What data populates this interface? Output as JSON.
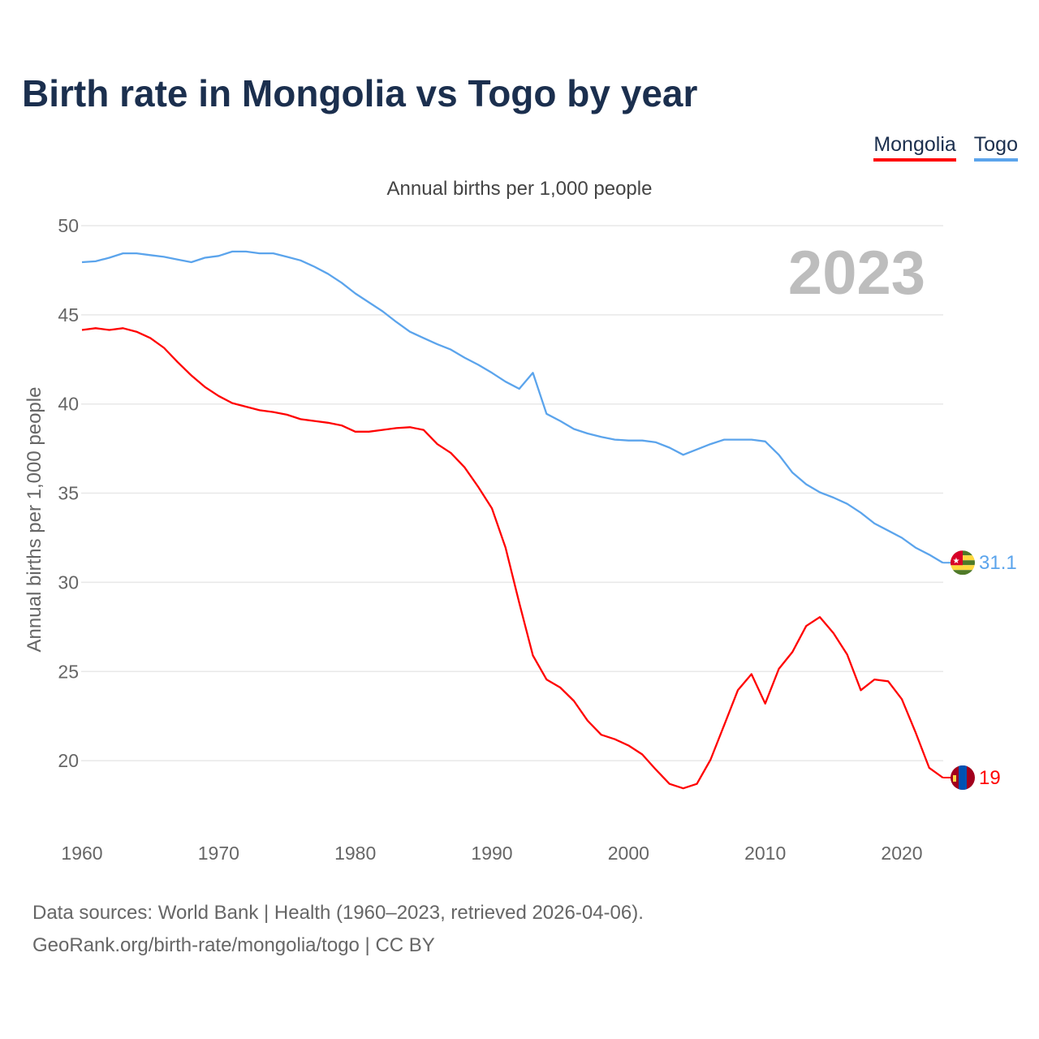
{
  "chart_data": {
    "type": "line",
    "title": "Birth rate in Mongolia vs Togo by year",
    "subtitle": "Annual births per 1,000 people",
    "ylabel": "Annual births per 1,000 people",
    "xlabel": "",
    "year_label": "2023",
    "ylim": [
      16.5,
      50
    ],
    "xlim": [
      1960,
      2023
    ],
    "yticks": [
      20,
      25,
      30,
      35,
      40,
      45,
      50
    ],
    "xticks": [
      1960,
      1970,
      1980,
      1990,
      2000,
      2010,
      2020
    ],
    "grid": true,
    "legend_position": "top-right",
    "x_start": 1960,
    "series": [
      {
        "name": "Mongolia",
        "color": "#ff0000",
        "end_label": "19",
        "flag": "mongolia-flag",
        "values": [
          44.15,
          44.25,
          44.15,
          44.25,
          44.05,
          43.7,
          43.15,
          42.35,
          41.6,
          40.95,
          40.45,
          40.05,
          39.85,
          39.65,
          39.55,
          39.4,
          39.15,
          39.05,
          38.95,
          38.8,
          38.45,
          38.45,
          38.55,
          38.65,
          38.7,
          38.55,
          37.75,
          37.25,
          36.45,
          35.35,
          34.15,
          31.95,
          28.85,
          25.9,
          24.55,
          24.1,
          23.35,
          22.25,
          21.45,
          21.2,
          20.85,
          20.35,
          19.5,
          18.7,
          18.45,
          18.7,
          20.05,
          22.0,
          23.95,
          24.85,
          23.2,
          25.15,
          26.1,
          27.55,
          28.05,
          27.15,
          25.95,
          23.95,
          24.55,
          24.45,
          23.45,
          21.6,
          19.6,
          19.05
        ]
      },
      {
        "name": "Togo",
        "color": "#5ba4ec",
        "end_label": "31.1",
        "flag": "togo-flag",
        "values": [
          47.95,
          48.0,
          48.2,
          48.45,
          48.45,
          48.35,
          48.25,
          48.1,
          47.95,
          48.2,
          48.3,
          48.55,
          48.55,
          48.45,
          48.45,
          48.25,
          48.05,
          47.7,
          47.3,
          46.8,
          46.2,
          45.7,
          45.2,
          44.6,
          44.05,
          43.7,
          43.35,
          43.05,
          42.6,
          42.2,
          41.75,
          41.25,
          40.85,
          41.75,
          39.45,
          39.05,
          38.6,
          38.35,
          38.15,
          38.0,
          37.95,
          37.95,
          37.85,
          37.55,
          37.15,
          37.45,
          37.75,
          38.0,
          38.0,
          38.0,
          37.9,
          37.15,
          36.15,
          35.5,
          35.05,
          34.75,
          34.4,
          33.9,
          33.3,
          32.9,
          32.5,
          31.95,
          31.55,
          31.1
        ]
      }
    ]
  },
  "footer": {
    "line1": "Data sources: World Bank | Health (1960–2023, retrieved 2026-04-06).",
    "line2": "GeoRank.org/birth-rate/mongolia/togo | CC BY"
  }
}
